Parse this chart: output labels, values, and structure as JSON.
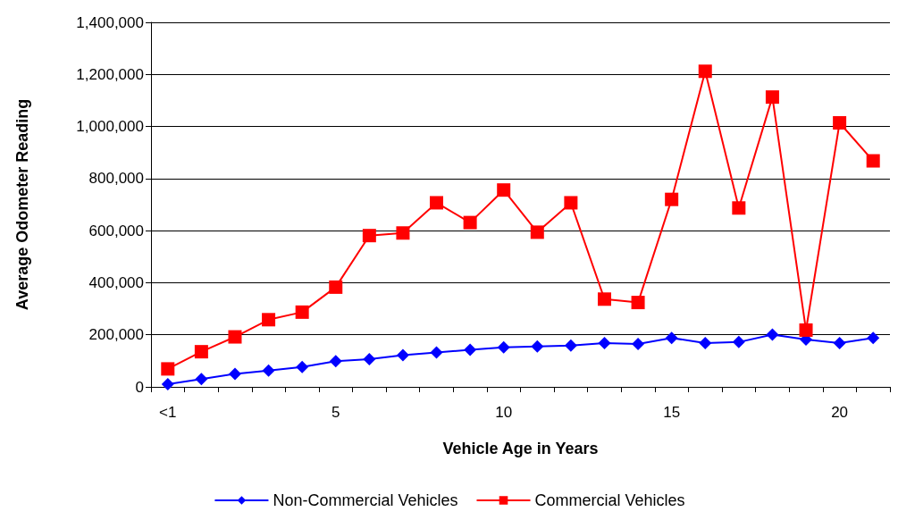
{
  "chart_data": {
    "type": "line",
    "xlabel": "Vehicle Age in Years",
    "ylabel": "Average Odometer Reading",
    "categories": [
      "<1",
      null,
      null,
      null,
      null,
      "5",
      null,
      null,
      null,
      null,
      "10",
      null,
      null,
      null,
      null,
      "15",
      null,
      null,
      null,
      null,
      "20",
      null
    ],
    "series": [
      {
        "name": "Non-Commercial Vehicles",
        "color": "#0000ff",
        "marker": "diamond",
        "values": [
          10000,
          30000,
          50000,
          63000,
          76000,
          99000,
          106000,
          122000,
          132000,
          142000,
          152000,
          155000,
          159000,
          168000,
          165000,
          188000,
          168000,
          172000,
          201000,
          182000,
          168000,
          188000
        ]
      },
      {
        "name": "Commercial Vehicles",
        "color": "#ff0000",
        "marker": "square",
        "values": [
          69000,
          135000,
          192000,
          258000,
          287000,
          383000,
          581000,
          591000,
          707000,
          631000,
          756000,
          594000,
          707000,
          337000,
          324000,
          720000,
          1212000,
          687000,
          1113000,
          218000,
          1014000,
          868000
        ]
      }
    ],
    "ylim": [
      0,
      1400000
    ],
    "yticks": [
      0,
      {
        "value": 200000,
        "label": "200,000"
      },
      {
        "value": 400000,
        "label": "400,000"
      },
      {
        "value": 600000,
        "label": "600,000"
      },
      {
        "value": 800000,
        "label": "800,000"
      },
      {
        "value": 1000000,
        "label": "1,000,000"
      },
      {
        "value": 1200000,
        "label": "1,200,000"
      },
      {
        "value": 1400000,
        "label": "1,400,000"
      }
    ],
    "grid": "y",
    "legend": "bottom",
    "line_style": "solid"
  }
}
